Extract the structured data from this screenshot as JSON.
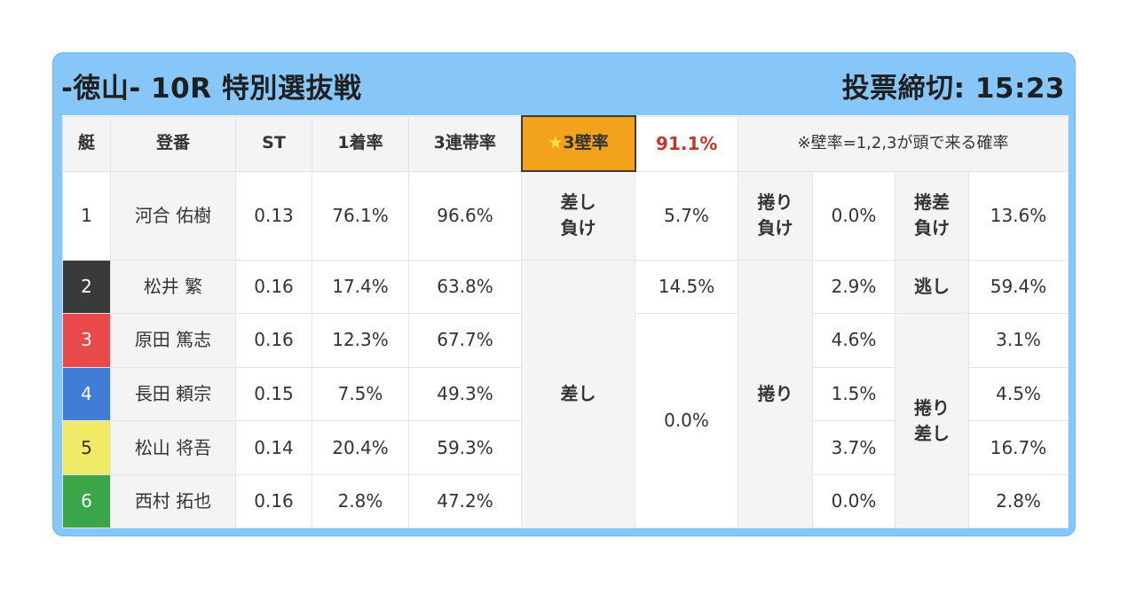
{
  "header": {
    "title": "-徳山- 10R 特別選抜戦",
    "deadline": "投票締切: 15:23"
  },
  "table": {
    "columns": [
      "艇",
      "登番",
      "ST",
      "1着率",
      "3連帯率"
    ],
    "mark_label_star": "★",
    "mark_label": "3壁率",
    "mark_value": "91.1%",
    "note": "※壁率=1,2,3が頭で来る確率",
    "colors": {
      "boat1": "#ffffff",
      "boat2": "#3a3a3a",
      "boat3": "#e84a4a",
      "boat4": "#3f7dd6",
      "boat5": "#f0eb67",
      "boat6": "#3aa648",
      "mark": "#f3a21c",
      "accent_red": "#c0392b"
    },
    "rows": [
      {
        "boat": "1",
        "name": "河合 佑樹",
        "st": "0.13",
        "win": "76.1%",
        "top3": "96.6%"
      },
      {
        "boat": "2",
        "name": "松井 繁",
        "st": "0.16",
        "win": "17.4%",
        "top3": "63.8%"
      },
      {
        "boat": "3",
        "name": "原田 篤志",
        "st": "0.16",
        "win": "12.3%",
        "top3": "67.7%"
      },
      {
        "boat": "4",
        "name": "長田 頼宗",
        "st": "0.15",
        "win": "7.5%",
        "top3": "49.3%"
      },
      {
        "boat": "5",
        "name": "松山 将吾",
        "st": "0.14",
        "win": "20.4%",
        "top3": "59.3%"
      },
      {
        "boat": "6",
        "name": "西村 拓也",
        "st": "0.16",
        "win": "2.8%",
        "top3": "47.2%"
      }
    ],
    "row1_kimarite": {
      "sashi_make_line1": "差し",
      "sashi_make_line2": "負け",
      "sashi_make_pct": "5.7%",
      "makuri_make_line1": "捲り",
      "makuri_make_line2": "負け",
      "makuri_make_pct": "0.0%",
      "makurizashi_make_line1": "捲差",
      "makurizashi_make_line2": "負け",
      "makurizashi_make_pct": "13.6%"
    },
    "kimarite": {
      "sashi": "差し",
      "sashi_boat2": "14.5%",
      "sashi_boat4": "0.0%",
      "makuri": "捲り",
      "makuri_boat2": "2.9%",
      "makuri_boat3": "4.6%",
      "makuri_boat4": "1.5%",
      "makuri_boat5": "3.7%",
      "makuri_boat6": "0.0%",
      "nige": "逃し",
      "nige_boat2": "59.4%",
      "makurizashi_line1": "捲り",
      "makurizashi_line2": "差し",
      "mz_boat3": "3.1%",
      "mz_boat4": "4.5%",
      "mz_boat5": "16.7%",
      "mz_boat6": "2.8%"
    }
  }
}
